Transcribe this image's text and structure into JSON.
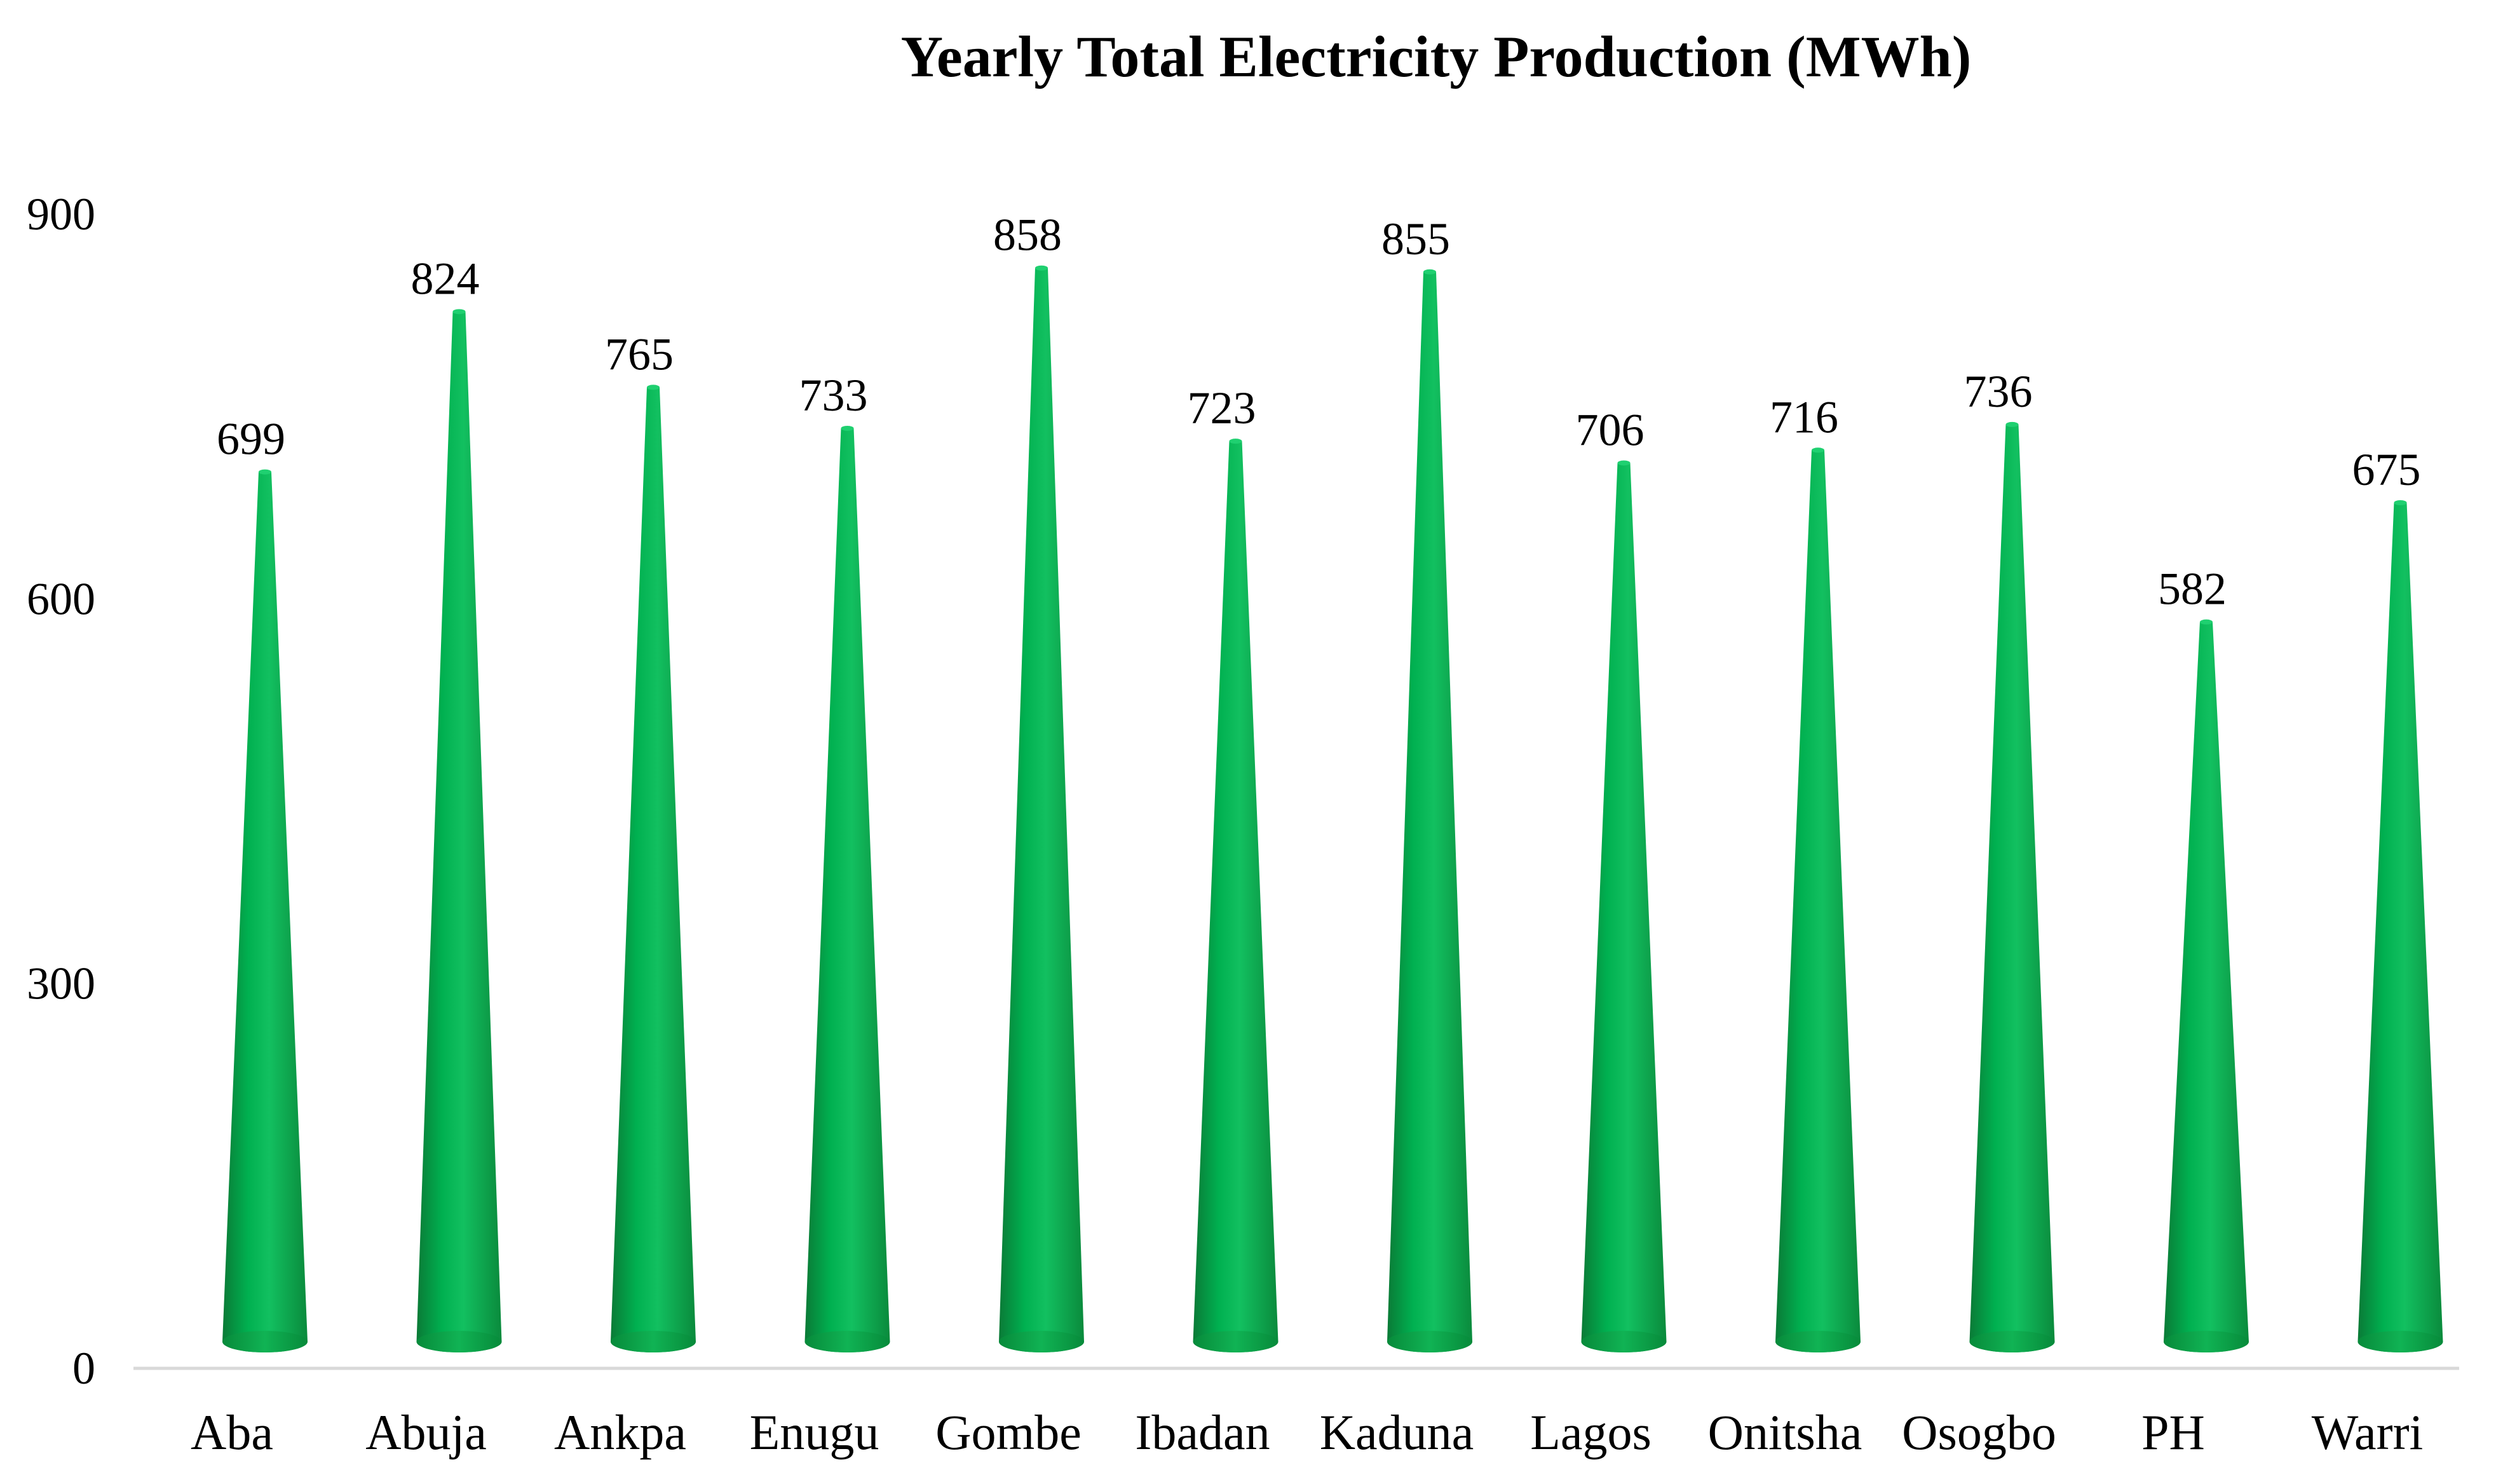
{
  "chart_data": {
    "type": "bar",
    "bar_style": "cone",
    "title": "Yearly Total Electricity Production (MWh)",
    "xlabel": "",
    "ylabel": "",
    "ylim": [
      0,
      900
    ],
    "yticks": [
      0,
      300,
      600,
      900
    ],
    "grid": false,
    "legend": "none",
    "bar_color": "#00B050",
    "categories": [
      "Aba",
      "Abuja",
      "Ankpa",
      "Enugu",
      "Gombe",
      "Ibadan",
      "Kaduna",
      "Lagos",
      "Onitsha",
      "Osogbo",
      "PH",
      "Warri"
    ],
    "values": [
      699,
      824,
      765,
      733,
      858,
      723,
      855,
      706,
      716,
      736,
      582,
      675
    ]
  }
}
